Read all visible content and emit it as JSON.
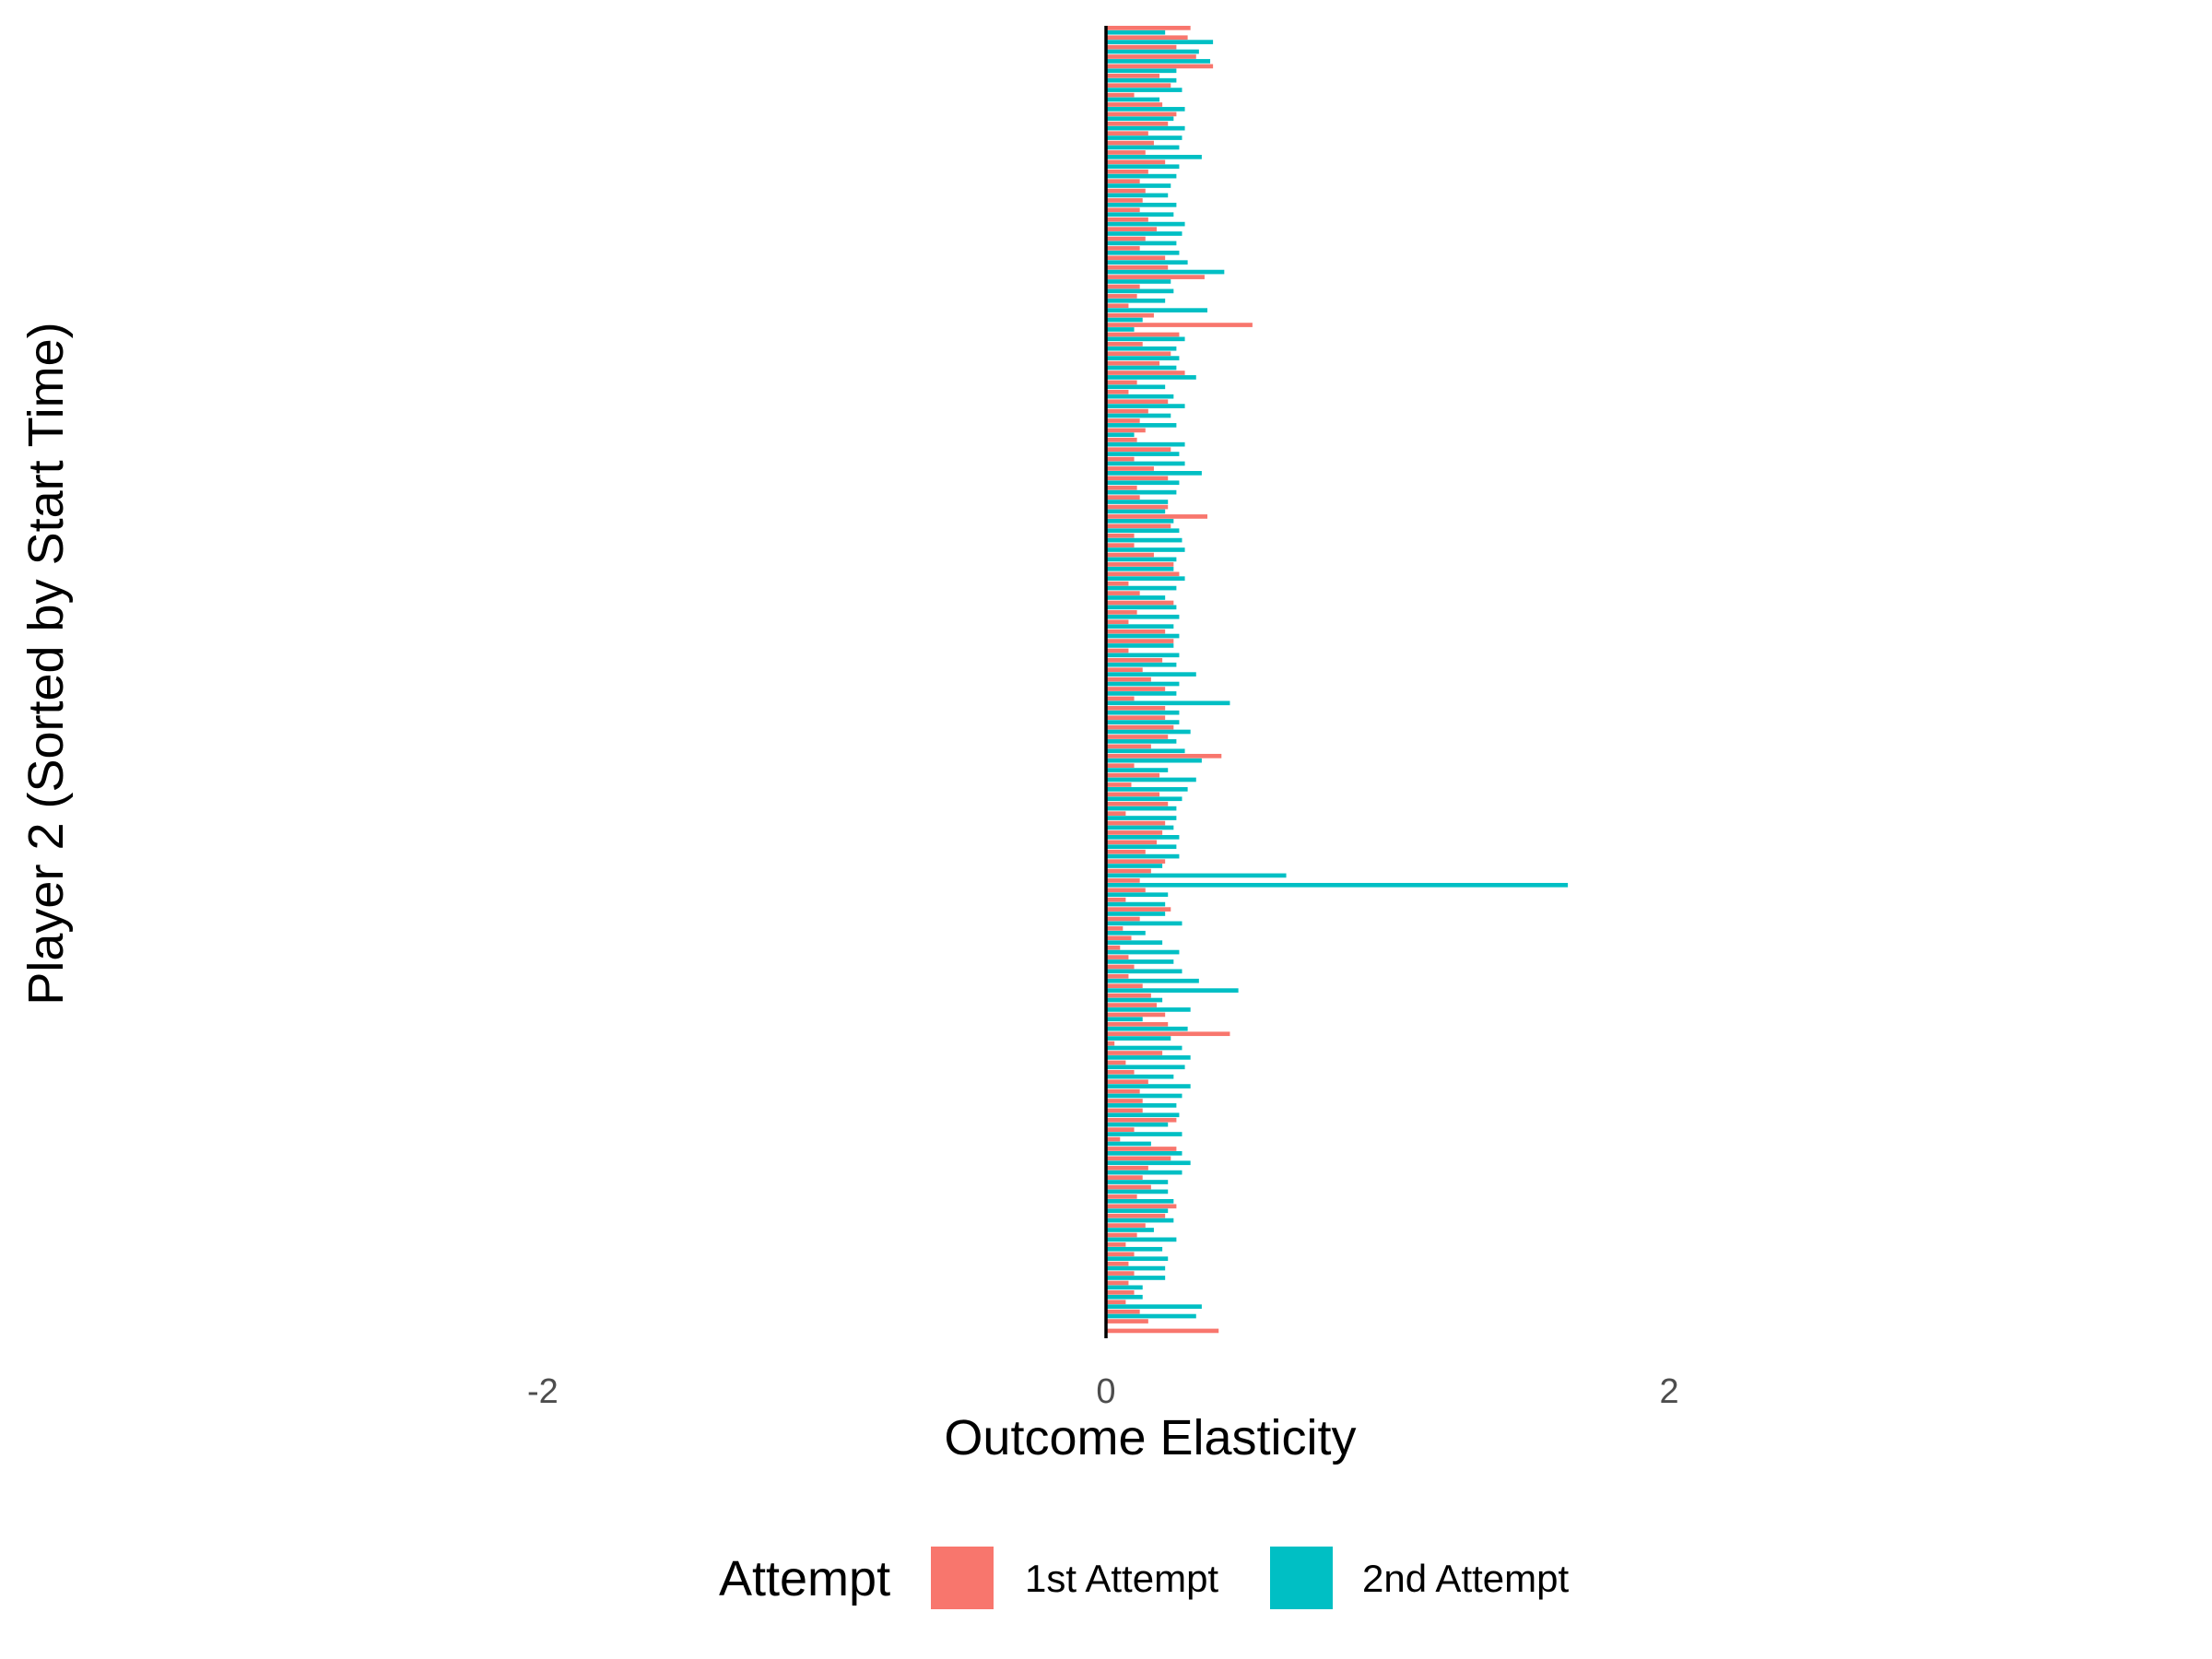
{
  "chart_data": {
    "type": "bar",
    "orientation": "horizontal",
    "xlabel": "Outcome Elasticity",
    "ylabel": "Player 2 (Sorted by Start Time)",
    "xlim": [
      -3.6,
      3.6
    ],
    "xticks": [
      -2,
      0,
      2
    ],
    "x_tick_labels": [
      "-2",
      "0",
      "2"
    ],
    "grid": false,
    "legend": {
      "title": "Attempt",
      "position": "bottom",
      "entries": [
        {
          "label": "1st Attempt",
          "color": "#F8766D"
        },
        {
          "label": "2nd Attempt",
          "color": "#00BFC4"
        }
      ]
    },
    "series": [
      {
        "name": "1st Attempt",
        "color": "#F8766D",
        "values": [
          0.3,
          0.29,
          0.25,
          0.32,
          0.38,
          0.19,
          0.23,
          0.1,
          0.2,
          0.25,
          0.22,
          0.15,
          0.17,
          0.14,
          0.21,
          0.15,
          0.12,
          0.14,
          0.13,
          0.12,
          0.15,
          0.18,
          0.14,
          0.12,
          0.21,
          0.22,
          0.35,
          0.12,
          0.11,
          0.08,
          0.17,
          0.52,
          0.26,
          0.13,
          0.23,
          0.19,
          0.28,
          0.11,
          0.08,
          0.22,
          0.15,
          0.12,
          0.14,
          0.11,
          0.23,
          0.1,
          0.17,
          0.22,
          0.11,
          0.12,
          0.22,
          0.36,
          0.23,
          0.1,
          0.1,
          0.17,
          0.24,
          0.26,
          0.08,
          0.12,
          0.24,
          0.11,
          0.08,
          0.21,
          0.24,
          0.08,
          0.2,
          0.13,
          0.16,
          0.21,
          0.1,
          0.21,
          0.21,
          0.24,
          0.22,
          0.16,
          0.41,
          0.1,
          0.19,
          0.09,
          0.19,
          0.22,
          0.07,
          0.21,
          0.2,
          0.18,
          0.14,
          0.21,
          0.16,
          0.12,
          0.14,
          0.07,
          0.23,
          0.12,
          0.06,
          0.09,
          0.05,
          0.08,
          0.1,
          0.08,
          0.13,
          0.16,
          0.18,
          0.21,
          0.22,
          0.44,
          0.03,
          0.2,
          0.07,
          0.1,
          0.15,
          0.12,
          0.13,
          0.13,
          0.25,
          0.1,
          0.05,
          0.25,
          0.23,
          0.15,
          0.13,
          0.16,
          0.11,
          0.25,
          0.21,
          0.14,
          0.11,
          0.07,
          0.1,
          0.08,
          0.1,
          0.08,
          0.1,
          0.07,
          0.12,
          0.15,
          0.4
        ]
      },
      {
        "name": "2nd Attempt",
        "color": "#00BFC4",
        "values": [
          0.21,
          0.38,
          0.33,
          0.37,
          0.25,
          0.25,
          0.27,
          0.19,
          0.28,
          0.24,
          0.28,
          0.27,
          0.26,
          0.34,
          0.26,
          0.25,
          0.23,
          0.22,
          0.25,
          0.24,
          0.28,
          0.27,
          0.25,
          0.26,
          0.29,
          0.42,
          0.23,
          0.24,
          0.21,
          0.36,
          0.13,
          0.1,
          0.28,
          0.25,
          0.26,
          0.25,
          0.32,
          0.21,
          0.24,
          0.28,
          0.23,
          0.25,
          0.1,
          0.28,
          0.26,
          0.28,
          0.34,
          0.26,
          0.25,
          0.22,
          0.21,
          0.24,
          0.26,
          0.27,
          0.28,
          0.25,
          0.24,
          0.28,
          0.25,
          0.21,
          0.25,
          0.26,
          0.24,
          0.26,
          0.24,
          0.26,
          0.25,
          0.32,
          0.26,
          0.25,
          0.44,
          0.26,
          0.26,
          0.3,
          0.25,
          0.28,
          0.34,
          0.22,
          0.32,
          0.29,
          0.27,
          0.25,
          0.25,
          0.24,
          0.26,
          0.25,
          0.26,
          0.2,
          0.64,
          1.64,
          0.22,
          0.21,
          0.21,
          0.27,
          0.14,
          0.2,
          0.26,
          0.24,
          0.27,
          0.33,
          0.47,
          0.2,
          0.3,
          0.13,
          0.29,
          0.23,
          0.27,
          0.3,
          0.28,
          0.24,
          0.3,
          0.27,
          0.25,
          0.26,
          0.22,
          0.27,
          0.16,
          0.27,
          0.3,
          0.27,
          0.22,
          0.22,
          0.24,
          0.22,
          0.24,
          0.17,
          0.25,
          0.2,
          0.22,
          0.21,
          0.21,
          0.13,
          0.13,
          0.34,
          0.32
        ]
      }
    ]
  }
}
